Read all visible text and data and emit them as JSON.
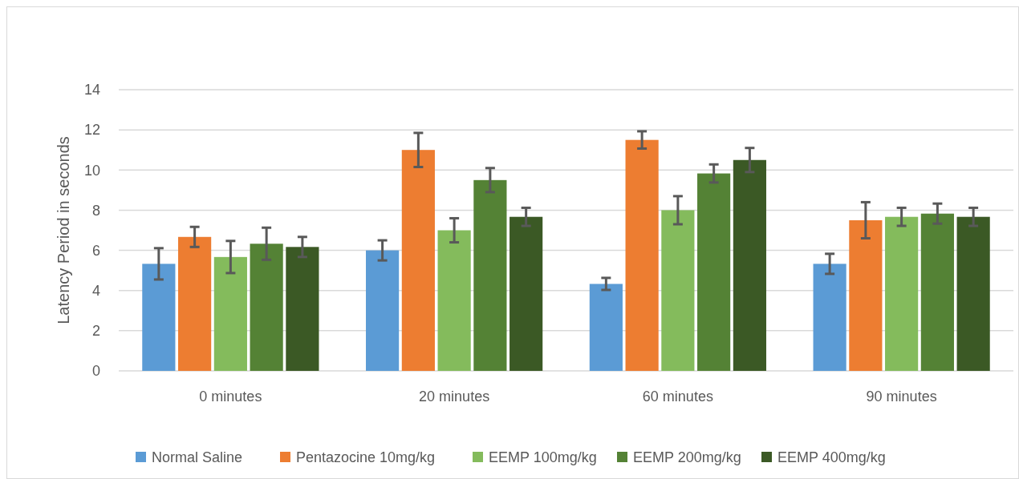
{
  "chart_data": {
    "type": "bar",
    "ylabel": "Latency Period in seconds",
    "categories": [
      "0 minutes",
      "20 minutes",
      "60 minutes",
      "90 minutes"
    ],
    "series": [
      {
        "name": "Normal Saline",
        "color": "#5b9bd5",
        "values": [
          5.33,
          6.0,
          4.33,
          5.33
        ],
        "errors": [
          0.78,
          0.5,
          0.3,
          0.5
        ]
      },
      {
        "name": "Pentazocine 10mg/kg",
        "color": "#ed7d31",
        "values": [
          6.67,
          11.0,
          11.5,
          7.5
        ],
        "errors": [
          0.5,
          0.85,
          0.43,
          0.9
        ]
      },
      {
        "name": "EEMP 100mg/kg",
        "color": "#84bb5c",
        "values": [
          5.67,
          7.0,
          8.0,
          7.67
        ],
        "errors": [
          0.8,
          0.6,
          0.7,
          0.45
        ]
      },
      {
        "name": "EEMP 200mg/kg",
        "color": "#548235",
        "values": [
          6.33,
          9.5,
          9.83,
          7.83
        ],
        "errors": [
          0.8,
          0.6,
          0.45,
          0.5
        ]
      },
      {
        "name": "EEMP 400mg/kg",
        "color": "#3b5925",
        "values": [
          6.17,
          7.67,
          10.5,
          7.67
        ],
        "errors": [
          0.5,
          0.45,
          0.6,
          0.45
        ]
      }
    ],
    "ylim": [
      0,
      14
    ],
    "yticks": [
      0,
      2,
      4,
      6,
      8,
      10,
      12,
      14
    ],
    "grid": "y",
    "legend": "bottom"
  }
}
